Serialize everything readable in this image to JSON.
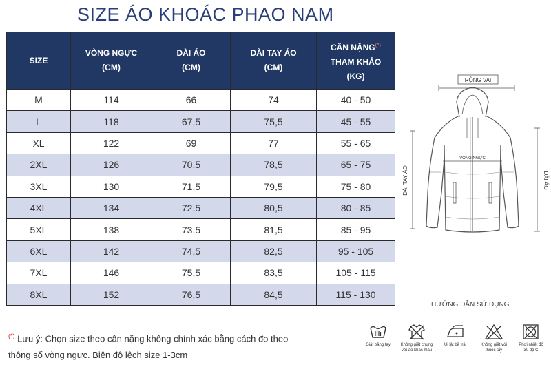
{
  "title": "SIZE ÁO KHOÁC PHAO NAM",
  "table": {
    "headers": [
      {
        "line1": "SIZE",
        "line2": "",
        "line3": "",
        "mark": ""
      },
      {
        "line1": "VÒNG NGỰC",
        "line2": "(CM)",
        "line3": "",
        "mark": ""
      },
      {
        "line1": "DÀI ÁO",
        "line2": "(CM)",
        "line3": "",
        "mark": ""
      },
      {
        "line1": "DÀI TAY ÁO",
        "line2": "(CM)",
        "line3": "",
        "mark": ""
      },
      {
        "line1": "CÂN NẶNG",
        "line2": "THAM KHẢO",
        "line3": "(KG)",
        "mark": "(*)"
      }
    ],
    "rows": [
      [
        "M",
        "114",
        "66",
        "74",
        "40 - 50"
      ],
      [
        "L",
        "118",
        "67,5",
        "75,5",
        "45 - 55"
      ],
      [
        "XL",
        "122",
        "69",
        "77",
        "55 - 65"
      ],
      [
        "2XL",
        "126",
        "70,5",
        "78,5",
        "65 - 75"
      ],
      [
        "3XL",
        "130",
        "71,5",
        "79,5",
        "75 - 80"
      ],
      [
        "4XL",
        "134",
        "72,5",
        "80,5",
        "80 - 85"
      ],
      [
        "5XL",
        "138",
        "73,5",
        "81,5",
        "85 - 95"
      ],
      [
        "6XL",
        "142",
        "74,5",
        "82,5",
        "95 - 105"
      ],
      [
        "7XL",
        "146",
        "75,5",
        "83,5",
        "105 - 115"
      ],
      [
        "8XL",
        "152",
        "76,5",
        "84,5",
        "115 - 130"
      ]
    ]
  },
  "diagram": {
    "shoulder_label": "RỘNG VAI",
    "chest_label": "VÒNG NGỰC",
    "sleeve_label": "DÀI TAY ÁO",
    "length_label": "DÀI ÁO"
  },
  "guide": {
    "title": "HƯỚNG DẪN SỬ DỤNG",
    "items": [
      {
        "icon": "hand-wash-icon",
        "label1": "Giặt bằng tay",
        "label2": ""
      },
      {
        "icon": "no-wash-with-colors-icon",
        "label1": "Không giặt chung",
        "label2": "với áo khác màu"
      },
      {
        "icon": "iron-reverse-icon",
        "label1": "Ủi lật bề trái",
        "label2": ""
      },
      {
        "icon": "no-bleach-icon",
        "label1": "Không giặt với",
        "label2": "thuốc tẩy"
      },
      {
        "icon": "tumble-dry-icon",
        "label1": "Phơi nhiệt độ",
        "label2": "30 độ C"
      }
    ]
  },
  "note": {
    "mark": "(*)",
    "line1": " Lưu ý: Chọn size theo cân nặng không chính xác bằng cách đo theo",
    "line2": "thông số vòng ngực. Biên độ lệch size 1-3cm"
  },
  "colors": {
    "header_bg": "#213864",
    "alt_row": "#d3d8ea",
    "title": "#2a3f7a",
    "note_mark": "#e02020"
  }
}
